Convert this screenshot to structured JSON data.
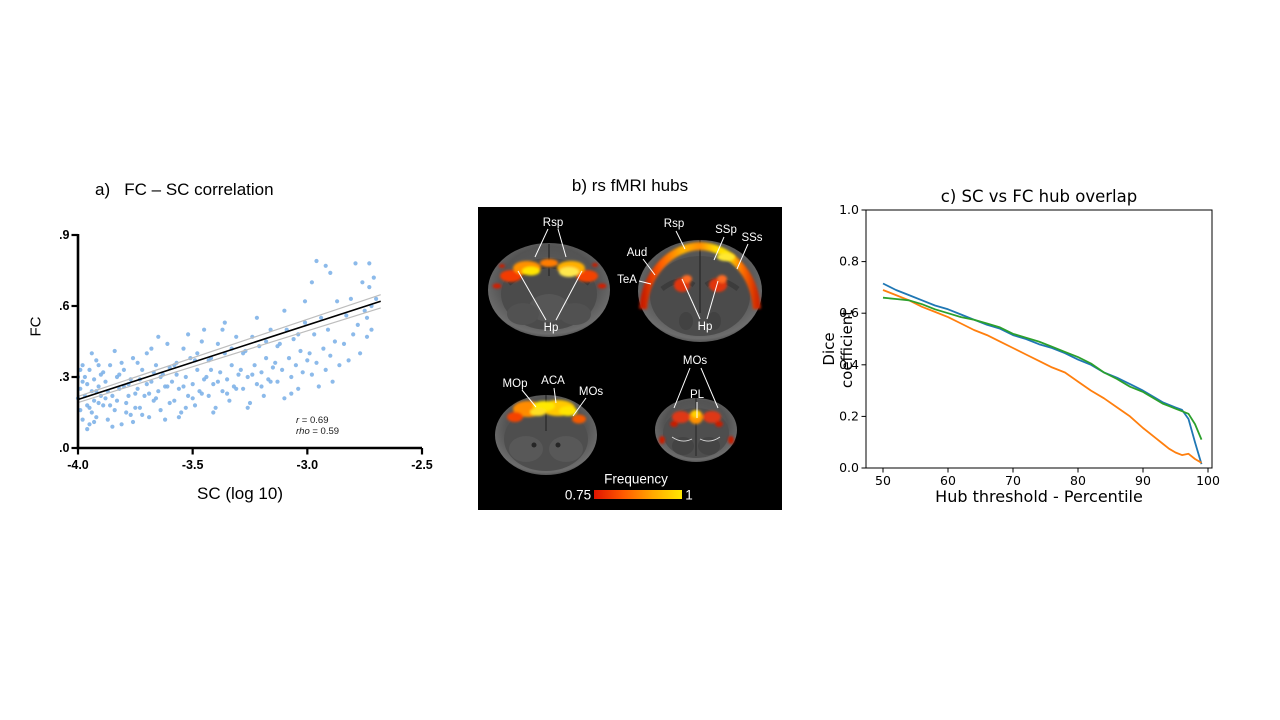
{
  "panel_a": {
    "title": "a)   FC – SC correlation",
    "xlabel": "SC (log 10)",
    "ylabel": "FC",
    "x_ticks": [
      "-4.0",
      "-3.5",
      "-3.0",
      "-2.5"
    ],
    "y_ticks": [
      "0.0",
      "0.3",
      "0.6",
      "0.9"
    ],
    "stats": {
      "r_sym": "r",
      "r_val": " = 0.69",
      "rho_sym": "rho",
      "rho_val": " = 0.59"
    },
    "dot_color": "#7fb3e8",
    "fit_color": "#000000",
    "ci_color": "#bdbdbd"
  },
  "panel_b": {
    "title": "b) rs fMRI hubs",
    "labels": {
      "rsp": "Rsp",
      "hp": "Hp",
      "ssp": "SSp",
      "sss": "SSs",
      "aud": "Aud",
      "tea": "TeA",
      "mop": "MOp",
      "aca": "ACA",
      "mos": "MOs",
      "pl": "PL"
    },
    "colorbar": {
      "title": "Frequency",
      "min": "0.75",
      "max": "1",
      "gradient": [
        "#df1400",
        "#ff5a00",
        "#ffa800",
        "#ffe800"
      ]
    }
  },
  "panel_c": {
    "title": "c) SC vs FC hub overlap",
    "xlabel": "Hub threshold - Percentile",
    "ylabel": "Dice coefficient",
    "x_ticks": [
      50,
      60,
      70,
      80,
      90,
      100
    ],
    "y_ticks": [
      "0.0",
      "0.2",
      "0.4",
      "0.6",
      "0.8",
      "1.0"
    ]
  },
  "chart_data": [
    {
      "type": "scatter",
      "title": "a) FC – SC correlation",
      "xlabel": "SC (log 10)",
      "ylabel": "FC",
      "xlim": [
        -4.0,
        -2.5
      ],
      "ylim": [
        0.0,
        0.9
      ],
      "annotations": [
        "r = 0.69",
        "rho = 0.59"
      ],
      "fit_line": {
        "x": [
          -4.0,
          -2.68
        ],
        "y": [
          0.205,
          0.62
        ]
      },
      "ci_upper": {
        "x": [
          -4.0,
          -2.68
        ],
        "y": [
          0.218,
          0.648
        ]
      },
      "ci_lower": {
        "x": [
          -4.0,
          -2.68
        ],
        "y": [
          0.192,
          0.592
        ]
      },
      "points": [
        [
          -4.0,
          0.21
        ],
        [
          -4.0,
          0.3
        ],
        [
          -3.99,
          0.16
        ],
        [
          -3.99,
          0.25
        ],
        [
          -3.98,
          0.35
        ],
        [
          -3.98,
          0.12
        ],
        [
          -3.97,
          0.22
        ],
        [
          -3.97,
          0.3
        ],
        [
          -3.96,
          0.18
        ],
        [
          -3.96,
          0.27
        ],
        [
          -3.95,
          0.1
        ],
        [
          -3.95,
          0.33
        ],
        [
          -3.94,
          0.24
        ],
        [
          -3.94,
          0.15
        ],
        [
          -3.93,
          0.29
        ],
        [
          -3.93,
          0.2
        ],
        [
          -3.92,
          0.37
        ],
        [
          -3.92,
          0.13
        ],
        [
          -3.91,
          0.26
        ],
        [
          -3.91,
          0.19
        ],
        [
          -3.9,
          0.31
        ],
        [
          -3.9,
          0.22
        ],
        [
          -3.98,
          0.28
        ],
        [
          -3.96,
          0.08
        ],
        [
          -3.94,
          0.4
        ],
        [
          -3.92,
          0.24
        ],
        [
          -3.99,
          0.33
        ],
        [
          -3.95,
          0.17
        ],
        [
          -3.93,
          0.11
        ],
        [
          -3.91,
          0.35
        ],
        [
          -3.89,
          0.18
        ],
        [
          -3.88,
          0.28
        ],
        [
          -3.87,
          0.12
        ],
        [
          -3.86,
          0.35
        ],
        [
          -3.85,
          0.22
        ],
        [
          -3.84,
          0.16
        ],
        [
          -3.83,
          0.3
        ],
        [
          -3.82,
          0.25
        ],
        [
          -3.81,
          0.1
        ],
        [
          -3.8,
          0.33
        ],
        [
          -3.79,
          0.19
        ],
        [
          -3.78,
          0.27
        ],
        [
          -3.77,
          0.14
        ],
        [
          -3.76,
          0.38
        ],
        [
          -3.75,
          0.23
        ],
        [
          -3.89,
          0.32
        ],
        [
          -3.87,
          0.24
        ],
        [
          -3.85,
          0.09
        ],
        [
          -3.83,
          0.2
        ],
        [
          -3.81,
          0.36
        ],
        [
          -3.79,
          0.15
        ],
        [
          -3.77,
          0.29
        ],
        [
          -3.75,
          0.17
        ],
        [
          -3.88,
          0.21
        ],
        [
          -3.84,
          0.41
        ],
        [
          -3.8,
          0.26
        ],
        [
          -3.76,
          0.11
        ],
        [
          -3.86,
          0.18
        ],
        [
          -3.82,
          0.31
        ],
        [
          -3.78,
          0.22
        ],
        [
          -3.74,
          0.25
        ],
        [
          -3.73,
          0.17
        ],
        [
          -3.72,
          0.33
        ],
        [
          -3.71,
          0.22
        ],
        [
          -3.7,
          0.4
        ],
        [
          -3.69,
          0.13
        ],
        [
          -3.68,
          0.28
        ],
        [
          -3.67,
          0.2
        ],
        [
          -3.66,
          0.35
        ],
        [
          -3.65,
          0.24
        ],
        [
          -3.64,
          0.16
        ],
        [
          -3.63,
          0.31
        ],
        [
          -3.62,
          0.26
        ],
        [
          -3.61,
          0.44
        ],
        [
          -3.6,
          0.19
        ],
        [
          -3.74,
          0.36
        ],
        [
          -3.72,
          0.14
        ],
        [
          -3.7,
          0.27
        ],
        [
          -3.68,
          0.42
        ],
        [
          -3.66,
          0.21
        ],
        [
          -3.64,
          0.3
        ],
        [
          -3.62,
          0.12
        ],
        [
          -3.6,
          0.34
        ],
        [
          -3.73,
          0.29
        ],
        [
          -3.69,
          0.23
        ],
        [
          -3.65,
          0.47
        ],
        [
          -3.61,
          0.26
        ],
        [
          -3.67,
          0.32
        ],
        [
          -3.59,
          0.28
        ],
        [
          -3.58,
          0.2
        ],
        [
          -3.57,
          0.36
        ],
        [
          -3.56,
          0.25
        ],
        [
          -3.55,
          0.15
        ],
        [
          -3.54,
          0.42
        ],
        [
          -3.53,
          0.3
        ],
        [
          -3.52,
          0.22
        ],
        [
          -3.51,
          0.38
        ],
        [
          -3.5,
          0.27
        ],
        [
          -3.49,
          0.18
        ],
        [
          -3.48,
          0.33
        ],
        [
          -3.47,
          0.24
        ],
        [
          -3.46,
          0.45
        ],
        [
          -3.45,
          0.29
        ],
        [
          -3.58,
          0.35
        ],
        [
          -3.56,
          0.13
        ],
        [
          -3.54,
          0.26
        ],
        [
          -3.52,
          0.48
        ],
        [
          -3.5,
          0.21
        ],
        [
          -3.48,
          0.4
        ],
        [
          -3.46,
          0.23
        ],
        [
          -3.57,
          0.31
        ],
        [
          -3.53,
          0.17
        ],
        [
          -3.49,
          0.37
        ],
        [
          -3.45,
          0.5
        ],
        [
          -3.44,
          0.3
        ],
        [
          -3.43,
          0.22
        ],
        [
          -3.42,
          0.38
        ],
        [
          -3.41,
          0.27
        ],
        [
          -3.4,
          0.17
        ],
        [
          -3.39,
          0.44
        ],
        [
          -3.38,
          0.32
        ],
        [
          -3.37,
          0.24
        ],
        [
          -3.36,
          0.4
        ],
        [
          -3.35,
          0.29
        ],
        [
          -3.34,
          0.2
        ],
        [
          -3.33,
          0.35
        ],
        [
          -3.32,
          0.26
        ],
        [
          -3.31,
          0.47
        ],
        [
          -3.3,
          0.31
        ],
        [
          -3.43,
          0.37
        ],
        [
          -3.41,
          0.15
        ],
        [
          -3.39,
          0.28
        ],
        [
          -3.37,
          0.5
        ],
        [
          -3.35,
          0.23
        ],
        [
          -3.33,
          0.42
        ],
        [
          -3.31,
          0.25
        ],
        [
          -3.42,
          0.33
        ],
        [
          -3.36,
          0.53
        ],
        [
          -3.29,
          0.33
        ],
        [
          -3.28,
          0.25
        ],
        [
          -3.27,
          0.41
        ],
        [
          -3.26,
          0.3
        ],
        [
          -3.25,
          0.19
        ],
        [
          -3.24,
          0.47
        ],
        [
          -3.23,
          0.35
        ],
        [
          -3.22,
          0.27
        ],
        [
          -3.21,
          0.43
        ],
        [
          -3.2,
          0.32
        ],
        [
          -3.19,
          0.22
        ],
        [
          -3.18,
          0.38
        ],
        [
          -3.17,
          0.29
        ],
        [
          -3.16,
          0.5
        ],
        [
          -3.15,
          0.34
        ],
        [
          -3.28,
          0.4
        ],
        [
          -3.26,
          0.17
        ],
        [
          -3.24,
          0.31
        ],
        [
          -3.22,
          0.55
        ],
        [
          -3.2,
          0.26
        ],
        [
          -3.18,
          0.45
        ],
        [
          -3.16,
          0.28
        ],
        [
          -3.14,
          0.36
        ],
        [
          -3.13,
          0.28
        ],
        [
          -3.12,
          0.44
        ],
        [
          -3.11,
          0.33
        ],
        [
          -3.1,
          0.21
        ],
        [
          -3.09,
          0.5
        ],
        [
          -3.08,
          0.38
        ],
        [
          -3.07,
          0.3
        ],
        [
          -3.06,
          0.46
        ],
        [
          -3.05,
          0.35
        ],
        [
          -3.04,
          0.25
        ],
        [
          -3.03,
          0.41
        ],
        [
          -3.02,
          0.32
        ],
        [
          -3.01,
          0.53
        ],
        [
          -3.0,
          0.37
        ],
        [
          -3.13,
          0.43
        ],
        [
          -3.1,
          0.58
        ],
        [
          -3.07,
          0.23
        ],
        [
          -3.04,
          0.48
        ],
        [
          -3.01,
          0.62
        ],
        [
          -2.99,
          0.4
        ],
        [
          -2.98,
          0.31
        ],
        [
          -2.97,
          0.48
        ],
        [
          -2.96,
          0.36
        ],
        [
          -2.95,
          0.26
        ],
        [
          -2.94,
          0.55
        ],
        [
          -2.93,
          0.42
        ],
        [
          -2.92,
          0.33
        ],
        [
          -2.91,
          0.5
        ],
        [
          -2.9,
          0.39
        ],
        [
          -2.89,
          0.28
        ],
        [
          -2.88,
          0.45
        ],
        [
          -2.87,
          0.62
        ],
        [
          -2.86,
          0.35
        ],
        [
          -2.98,
          0.7
        ],
        [
          -2.9,
          0.74
        ],
        [
          -2.96,
          0.79
        ],
        [
          -2.92,
          0.77
        ],
        [
          -2.84,
          0.44
        ],
        [
          -2.83,
          0.56
        ],
        [
          -2.82,
          0.37
        ],
        [
          -2.81,
          0.63
        ],
        [
          -2.8,
          0.48
        ],
        [
          -2.79,
          0.78
        ],
        [
          -2.78,
          0.52
        ],
        [
          -2.77,
          0.4
        ],
        [
          -2.76,
          0.7
        ],
        [
          -2.75,
          0.58
        ],
        [
          -2.74,
          0.55
        ],
        [
          -2.74,
          0.47
        ],
        [
          -2.73,
          0.68
        ],
        [
          -2.73,
          0.78
        ],
        [
          -2.72,
          0.6
        ],
        [
          -2.72,
          0.5
        ],
        [
          -2.71,
          0.72
        ],
        [
          -2.7,
          0.63
        ]
      ]
    },
    {
      "type": "line",
      "title": "c) SC vs FC hub overlap",
      "xlabel": "Hub threshold - Percentile",
      "ylabel": "Dice coefficient",
      "xlim": [
        47.5,
        101.5
      ],
      "ylim": [
        0.0,
        1.0
      ],
      "legend": "none",
      "x": [
        50,
        52,
        54,
        56,
        58,
        60,
        62,
        64,
        66,
        68,
        70,
        72,
        74,
        76,
        78,
        80,
        82,
        84,
        86,
        88,
        90,
        92,
        93,
        94,
        95,
        96,
        97,
        98,
        99
      ],
      "series": [
        {
          "name": "blue",
          "color": "#1f77b4",
          "values": [
            0.715,
            0.69,
            0.67,
            0.65,
            0.63,
            0.615,
            0.595,
            0.575,
            0.555,
            0.54,
            0.515,
            0.5,
            0.48,
            0.465,
            0.445,
            0.42,
            0.4,
            0.37,
            0.35,
            0.325,
            0.3,
            0.27,
            0.255,
            0.245,
            0.235,
            0.225,
            0.19,
            0.1,
            0.015
          ]
        },
        {
          "name": "orange",
          "color": "#ff7f0e",
          "values": [
            0.69,
            0.67,
            0.65,
            0.625,
            0.605,
            0.585,
            0.56,
            0.535,
            0.515,
            0.49,
            0.465,
            0.44,
            0.415,
            0.39,
            0.37,
            0.335,
            0.3,
            0.27,
            0.235,
            0.2,
            0.155,
            0.115,
            0.095,
            0.075,
            0.06,
            0.05,
            0.055,
            0.035,
            0.02
          ]
        },
        {
          "name": "green",
          "color": "#2ca02c",
          "values": [
            0.66,
            0.655,
            0.65,
            0.635,
            0.615,
            0.6,
            0.585,
            0.575,
            0.56,
            0.545,
            0.52,
            0.505,
            0.49,
            0.47,
            0.45,
            0.43,
            0.405,
            0.37,
            0.345,
            0.315,
            0.295,
            0.265,
            0.25,
            0.24,
            0.23,
            0.22,
            0.21,
            0.17,
            0.11
          ]
        }
      ]
    }
  ]
}
